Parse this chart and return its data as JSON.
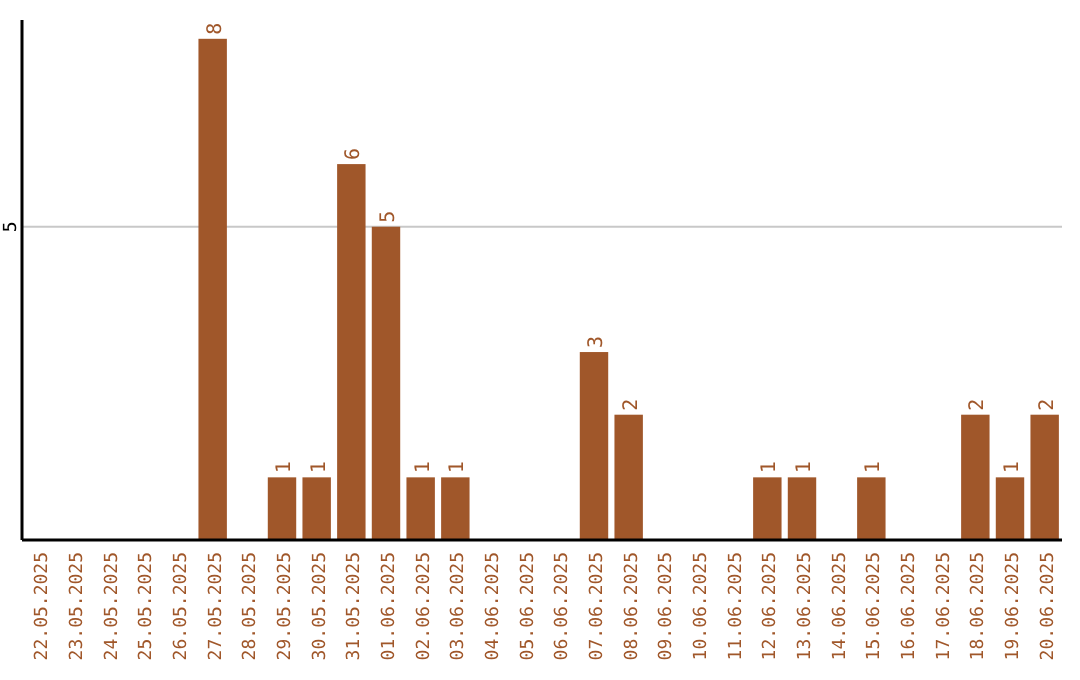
{
  "chart_data": {
    "type": "bar",
    "categories": [
      "22.05.2025",
      "23.05.2025",
      "24.05.2025",
      "25.05.2025",
      "26.05.2025",
      "27.05.2025",
      "28.05.2025",
      "29.05.2025",
      "30.05.2025",
      "31.05.2025",
      "01.06.2025",
      "02.06.2025",
      "03.06.2025",
      "04.06.2025",
      "05.06.2025",
      "06.06.2025",
      "07.06.2025",
      "08.06.2025",
      "09.06.2025",
      "10.06.2025",
      "11.06.2025",
      "12.06.2025",
      "13.06.2025",
      "14.06.2025",
      "15.06.2025",
      "16.06.2025",
      "17.06.2025",
      "18.06.2025",
      "19.06.2025",
      "20.06.2025"
    ],
    "values": [
      0,
      0,
      0,
      0,
      0,
      8,
      0,
      1,
      1,
      6,
      5,
      1,
      1,
      0,
      0,
      0,
      3,
      2,
      0,
      0,
      0,
      1,
      1,
      0,
      1,
      0,
      0,
      2,
      1,
      2
    ],
    "value_labels": [
      null,
      null,
      null,
      null,
      null,
      "8",
      null,
      "1",
      "1",
      "6",
      "5",
      "1",
      "1",
      null,
      null,
      null,
      "3",
      "2",
      null,
      null,
      null,
      "1",
      "1",
      null,
      "1",
      null,
      null,
      "2",
      "1",
      "2"
    ],
    "color": "#a0572a",
    "ylim": [
      0,
      8.3
    ],
    "yticks": [
      5
    ],
    "grid": "y"
  }
}
